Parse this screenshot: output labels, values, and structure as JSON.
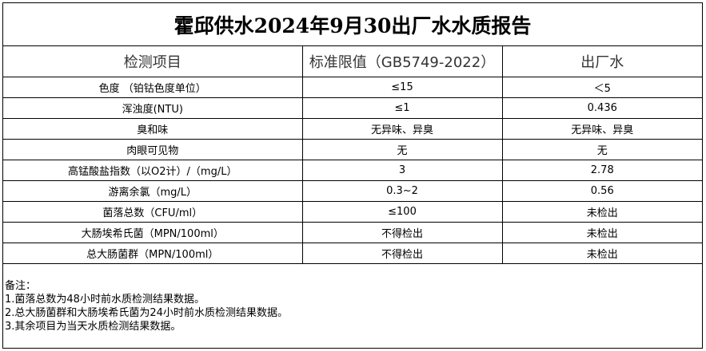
{
  "title": "霍邱供水2024年9月30出厂水水质报告",
  "headers": [
    "检测项目",
    "标准限值（GB5749-2022）",
    "出厂水"
  ],
  "rows": [
    [
      "色度 （铂钴色度单位）",
      "≤15",
      "＜5"
    ],
    [
      "浑浊度(NTU)",
      "≤1",
      "0.436"
    ],
    [
      "臭和味",
      "无异味、异臭",
      "无异味、异臭"
    ],
    [
      "肉眼可见物",
      "无",
      "无"
    ],
    [
      "高锰酸盐指数（以O2计）/（mg/L）",
      "3",
      "2.78"
    ],
    [
      "游离余氯（mg/L）",
      "0.3~2",
      "0.56"
    ],
    [
      "菌落总数（CFU/ml）",
      "≤100",
      "未检出"
    ],
    [
      "大肠埃希氏菌（MPN/100ml）",
      "不得检出",
      "未检出"
    ],
    [
      "总大肠菌群（MPN/100ml）",
      "不得检出",
      "未检出"
    ]
  ],
  "notes": {
    "heading": "备注：",
    "items": [
      "1.菌落总数为48小时前水质检测结果数据。",
      "2.总大肠菌群和大肠埃希氏菌为24小时前水质检测结果数据。",
      "3.其余项目为当天水质检测结果数据。"
    ]
  }
}
